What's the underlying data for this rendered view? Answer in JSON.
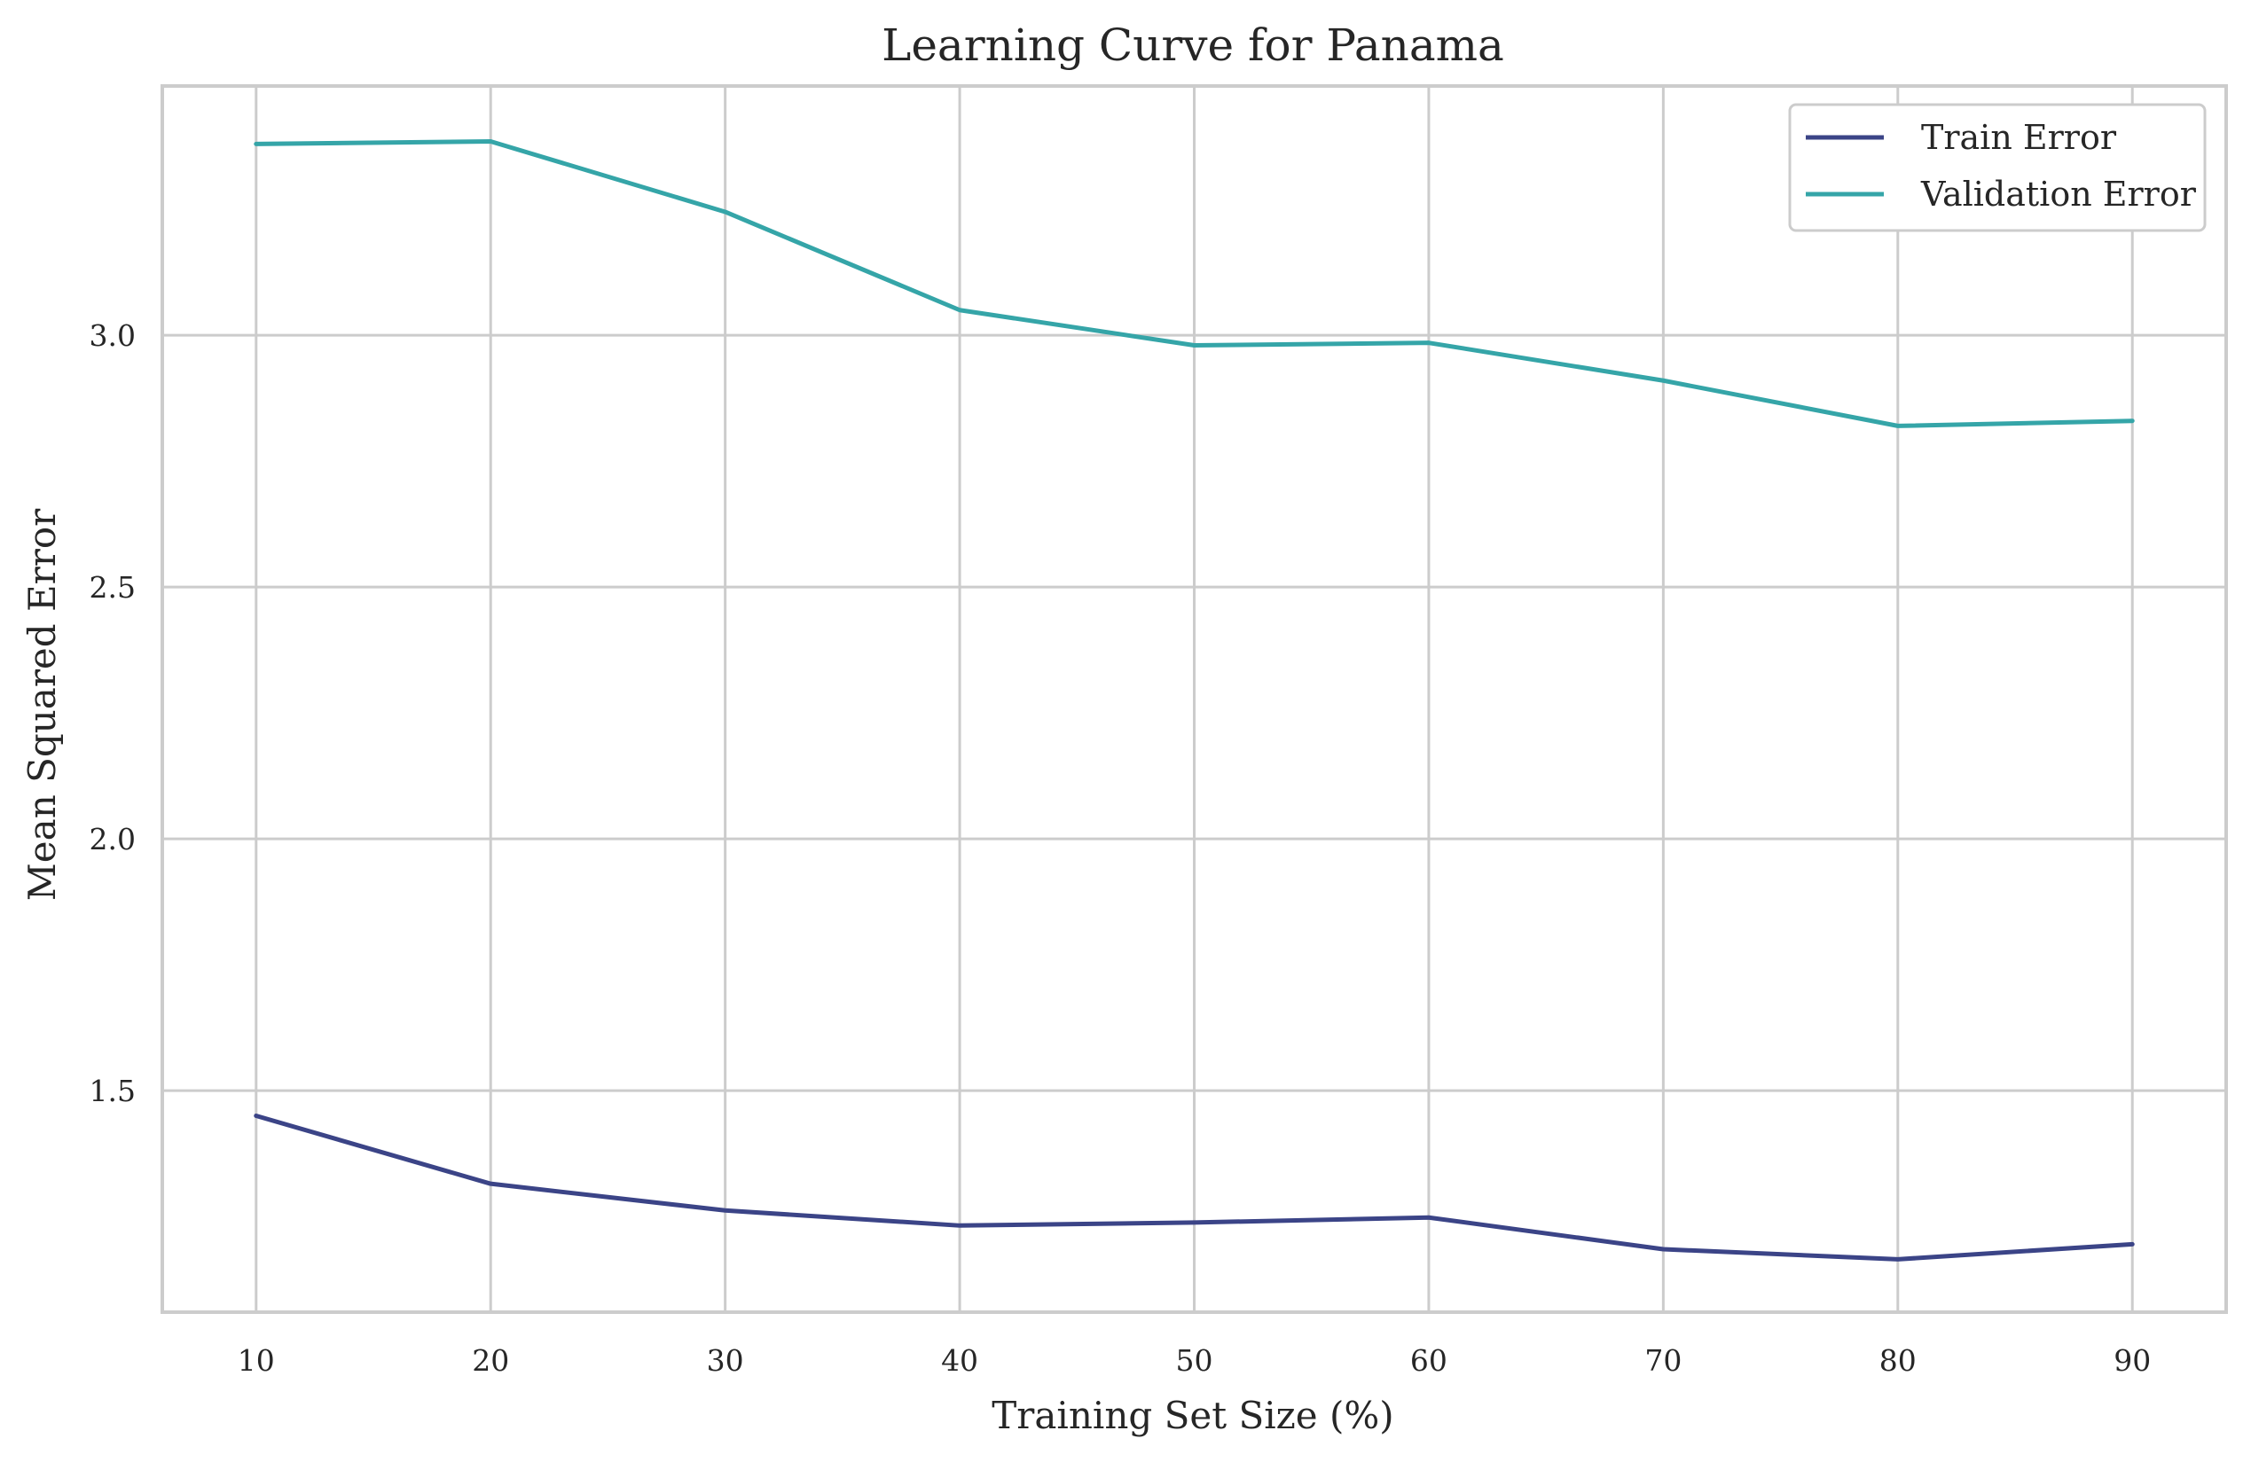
{
  "chart_data": {
    "type": "line",
    "title": "Learning Curve for Panama",
    "xlabel": "Training Set Size (%)",
    "ylabel": "Mean Squared Error",
    "x": [
      10,
      20,
      30,
      40,
      50,
      60,
      70,
      80,
      90
    ],
    "xticks": [
      "10",
      "20",
      "30",
      "40",
      "50",
      "60",
      "70",
      "80",
      "90"
    ],
    "yticks": [
      "1.5",
      "2.0",
      "2.5",
      "3.0"
    ],
    "ytick_values": [
      1.5,
      2.0,
      2.5,
      3.0
    ],
    "xlim": [
      6,
      94
    ],
    "ylim": [
      1.06,
      3.495
    ],
    "grid": true,
    "legend_position": "top-right",
    "series": [
      {
        "name": "Train Error",
        "color": "#3b4487",
        "values": [
          1.45,
          1.315,
          1.262,
          1.232,
          1.238,
          1.248,
          1.185,
          1.165,
          1.195
        ]
      },
      {
        "name": "Validation Error",
        "color": "#35a5a8",
        "values": [
          3.38,
          3.385,
          3.245,
          3.05,
          2.98,
          2.985,
          2.91,
          2.82,
          2.83
        ]
      }
    ]
  }
}
